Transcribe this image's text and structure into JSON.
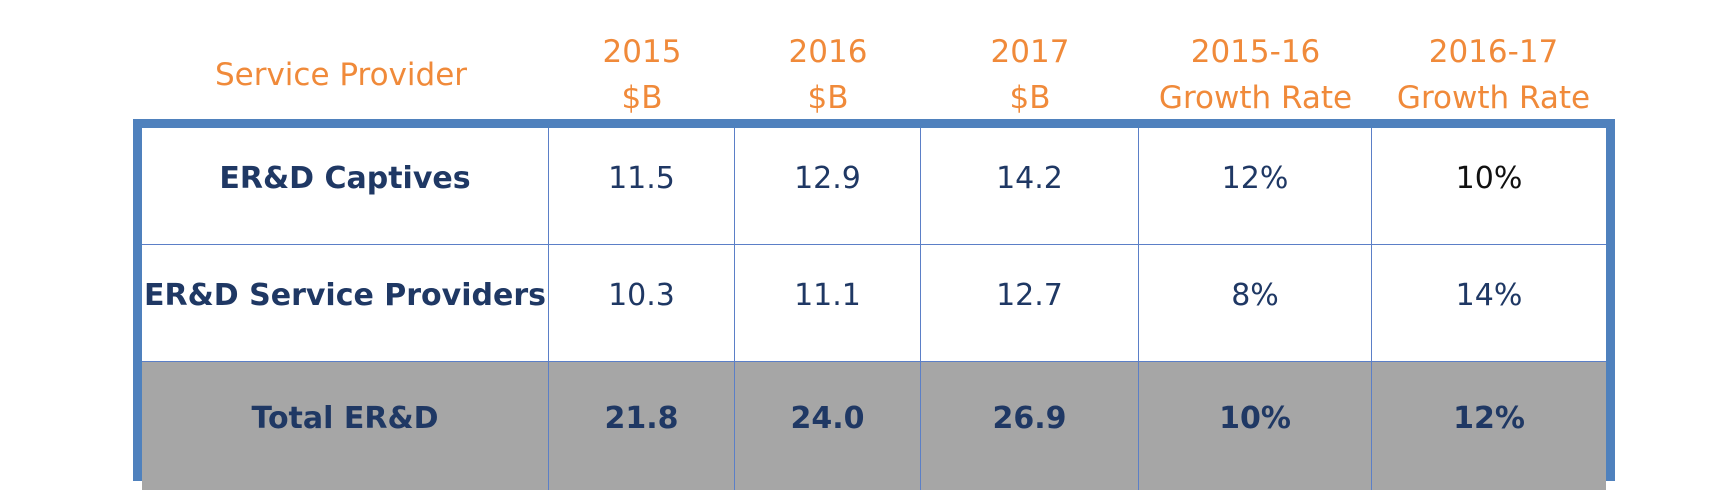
{
  "colors": {
    "header_text": "#f08a3a",
    "frame_border": "#4f81bd",
    "grid_line": "#5b7fc7",
    "body_text": "#1f3864",
    "total_row_bg": "#a6a6a6"
  },
  "chart_data": {
    "type": "table",
    "columns": [
      {
        "lines": [
          "Service Provider"
        ]
      },
      {
        "lines": [
          "2015",
          "$B"
        ]
      },
      {
        "lines": [
          "2016",
          "$B"
        ]
      },
      {
        "lines": [
          "2017",
          "$B"
        ]
      },
      {
        "lines": [
          "2015-16",
          "Growth Rate"
        ]
      },
      {
        "lines": [
          "2016-17",
          "Growth Rate"
        ]
      }
    ],
    "rows": [
      {
        "label": "ER&D Captives",
        "values": [
          "11.5",
          "12.9",
          "14.2",
          "12%",
          "10%"
        ]
      },
      {
        "label": "ER&D Service Providers",
        "values": [
          "10.3",
          "11.1",
          "12.7",
          "8%",
          "14%"
        ]
      },
      {
        "label": "Total ER&D",
        "values": [
          "21.8",
          "24.0",
          "26.9",
          "10%",
          "12%"
        ]
      }
    ]
  }
}
